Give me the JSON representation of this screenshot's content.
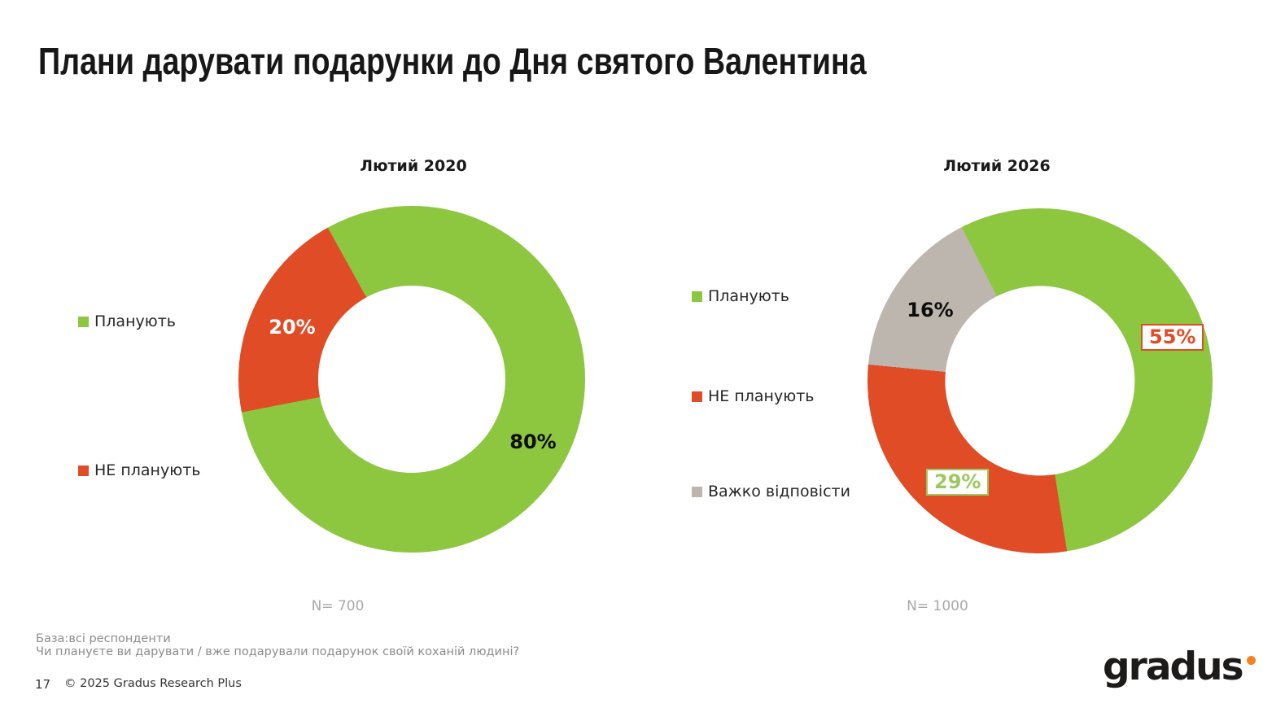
{
  "slide": {
    "title": "Плани дарувати подарунки до Дня святого Валентина",
    "colors": {
      "green": "#8DC63F",
      "red": "#E04C26",
      "gray": "#BDB6AE",
      "label_green": "#9CC95E",
      "orange": "#F58220"
    },
    "footer": {
      "base_note": "База:всі респонденти",
      "question": "Чи плануєте ви дарувати / вже подарували подарунок своїй коханій людині?",
      "page_number": "17",
      "copyright": "© 2025 Gradus Research Plus",
      "logo_text": "gradus"
    }
  },
  "chart_data": [
    {
      "type": "pie",
      "subtype": "donut",
      "title": "Лютий 2020",
      "categories": [
        "Планують",
        "НЕ планують"
      ],
      "values": [
        80,
        20
      ],
      "value_labels": [
        "80%",
        "20%"
      ],
      "colors": [
        "#8DC63F",
        "#E04C26"
      ],
      "start_angle_deg": -29,
      "hole_ratio": 0.54,
      "legend_position": "left",
      "sample_label": "N= 700"
    },
    {
      "type": "pie",
      "subtype": "donut",
      "title": "Лютий 2026",
      "categories": [
        "Планують",
        "НЕ планують",
        "Важко відповісти"
      ],
      "values": [
        55,
        29,
        16
      ],
      "value_labels": [
        "55%",
        "29%",
        "16%"
      ],
      "colors": [
        "#8DC63F",
        "#E04C26",
        "#BDB6AE"
      ],
      "start_angle_deg": -27,
      "hole_ratio": 0.55,
      "legend_position": "left",
      "sample_label": "N= 1000",
      "callout_styles": {
        "55": "white-box-red-border",
        "29": "white-box-green-border"
      }
    }
  ]
}
